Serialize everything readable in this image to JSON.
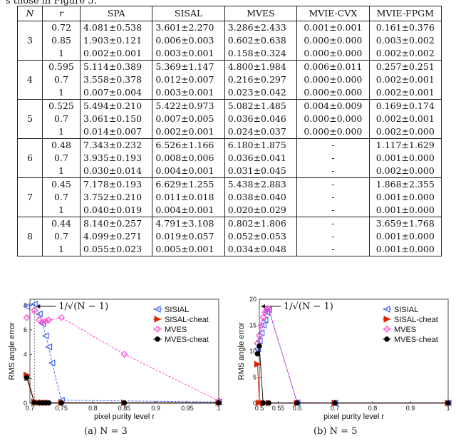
{
  "intro_text": "s those in Figure 5.",
  "table": {
    "headers": [
      "N",
      "r",
      "SPA",
      "SISAL",
      "MVES",
      "MVIE-CVX",
      "MVIE-FPGM"
    ],
    "groups": [
      {
        "N": "3",
        "rows": [
          [
            "0.72",
            "4.081±0.538",
            "3.601±2.270",
            "3.286±2.433",
            "0.001±0.001",
            "0.161±0.376"
          ],
          [
            "0.85",
            "1.903±0.121",
            "0.006±0.003",
            "0.602±0.638",
            "0.000±0.000",
            "0.003±0.002"
          ],
          [
            "1",
            "0.002±0.001",
            "0.003±0.001",
            "0.158±0.324",
            "0.000±0.000",
            "0.002±0.002"
          ]
        ]
      },
      {
        "N": "4",
        "rows": [
          [
            "0.595",
            "5.114±0.389",
            "5.369±1.147",
            "4.800±1.984",
            "0.006±0.011",
            "0.257±0.251"
          ],
          [
            "0.7",
            "3.558±0.378",
            "0.012±0.007",
            "0.216±0.297",
            "0.000±0.000",
            "0.002±0.001"
          ],
          [
            "1",
            "0.007±0.004",
            "0.003±0.001",
            "0.023±0.042",
            "0.000±0.000",
            "0.002±0.001"
          ]
        ]
      },
      {
        "N": "5",
        "rows": [
          [
            "0.525",
            "5.494±0.210",
            "5.422±0.973",
            "5.082±1.485",
            "0.004±0.009",
            "0.169±0.174"
          ],
          [
            "0.7",
            "3.061±0.150",
            "0.007±0.005",
            "0.036±0.046",
            "0.000±0.000",
            "0.002±0.001"
          ],
          [
            "1",
            "0.014±0.007",
            "0.002±0.001",
            "0.024±0.037",
            "0.000±0.000",
            "0.002±0.000"
          ]
        ]
      },
      {
        "N": "6",
        "rows": [
          [
            "0.48",
            "7.343±0.232",
            "6.526±1.166",
            "6.180±1.875",
            "-",
            "1.117±1.629"
          ],
          [
            "0.7",
            "3.935±0.193",
            "0.008±0.006",
            "0.036±0.041",
            "-",
            "0.001±0.000"
          ],
          [
            "1",
            "0.030±0.014",
            "0.004±0.001",
            "0.031±0.045",
            "-",
            "0.002±0.000"
          ]
        ]
      },
      {
        "N": "7",
        "rows": [
          [
            "0.45",
            "7.178±0.193",
            "6.629±1.255",
            "5.438±2.883",
            "-",
            "1.868±2.355"
          ],
          [
            "0.7",
            "3.752±0.210",
            "0.011±0.018",
            "0.038±0.040",
            "-",
            "0.001±0.000"
          ],
          [
            "1",
            "0.040±0.019",
            "0.004±0.001",
            "0.020±0.029",
            "-",
            "0.001±0.000"
          ]
        ]
      },
      {
        "N": "8",
        "rows": [
          [
            "0.44",
            "8.140±0.257",
            "4.791±3.108",
            "0.802±1.806",
            "-",
            "3.659±1.768"
          ],
          [
            "0.7",
            "4.099±0.271",
            "0.019±0.057",
            "0.052±0.053",
            "-",
            "0.001±0.000"
          ],
          [
            "1",
            "0.055±0.023",
            "0.005±0.001",
            "0.034±0.048",
            "-",
            "0.001±0.000"
          ]
        ]
      }
    ]
  },
  "chart_data": [
    {
      "type": "line",
      "caption": "(a) N = 3",
      "xlabel": "pixel purity level r",
      "ylabel": "RMS angle error",
      "xlim": [
        0.7,
        1.0
      ],
      "ylim": [
        0,
        8.5
      ],
      "xticks": [
        0.7,
        0.75,
        0.8,
        0.85,
        0.9,
        0.95,
        1
      ],
      "xtick_labels": [
        "0.7",
        "0.75",
        "0.8",
        "0.85",
        "0.9",
        "0.95",
        "1"
      ],
      "yticks": [
        0,
        2,
        4,
        6,
        8
      ],
      "ytick_labels": [
        "0",
        "2",
        "4",
        "6",
        "8"
      ],
      "vline_x": 0.7071,
      "annotation": "1/√(N − 1)",
      "legend_position": "top-right",
      "series": [
        {
          "name": "SISIAL",
          "color": "#3355ff",
          "marker": "triangle-left",
          "dashed": true,
          "x": [
            0.695,
            0.7071,
            0.715,
            0.72,
            0.725,
            0.73,
            0.735,
            0.75,
            1.0
          ],
          "y": [
            7.9,
            8.1,
            7.3,
            6.5,
            5.5,
            4.6,
            3.3,
            0.25,
            0.1
          ]
        },
        {
          "name": "SISAL-cheat",
          "color": "#dd2200",
          "marker": "triangle-right",
          "dashed": false,
          "x": [
            0.695,
            0.7071,
            0.715,
            0.72,
            0.725,
            0.73,
            0.75,
            0.85,
            1.0
          ],
          "y": [
            2.3,
            0.1,
            0.05,
            0.05,
            0.05,
            0.05,
            0.05,
            0.05,
            0.05
          ]
        },
        {
          "name": "MVES",
          "color": "#ff33cc",
          "marker": "diamond",
          "dashed": true,
          "x": [
            0.695,
            0.7071,
            0.715,
            0.72,
            0.725,
            0.73,
            0.75,
            0.85,
            1.0
          ],
          "y": [
            7.0,
            7.6,
            6.8,
            6.6,
            6.7,
            6.8,
            7.0,
            4.0,
            0.2
          ]
        },
        {
          "name": "MVES-cheat",
          "color": "#000000",
          "marker": "circle",
          "dashed": false,
          "x": [
            0.695,
            0.7071,
            0.715,
            0.72,
            0.725,
            0.73,
            0.75,
            0.85,
            1.0
          ],
          "y": [
            2.1,
            0.05,
            0.03,
            0.03,
            0.03,
            0.03,
            0.03,
            0.03,
            0.03
          ]
        }
      ]
    },
    {
      "type": "line",
      "caption": "(b) N = 5",
      "xlabel": "pixel purity level r",
      "ylabel": "RMS angle error",
      "xlim": [
        0.5,
        1.0
      ],
      "ylim": [
        0,
        20
      ],
      "xticks": [
        0.5,
        0.55,
        0.6,
        0.7,
        0.8,
        0.9,
        1
      ],
      "xtick_labels": [
        "0.5",
        "0.55",
        "0.6",
        "0.7",
        "0.8",
        "0.9",
        "1"
      ],
      "yticks": [
        0,
        5,
        10,
        15,
        20
      ],
      "ytick_labels": [
        "0",
        "5",
        "10",
        "15",
        "20"
      ],
      "vline_x": 0.5,
      "annotation": "1/√(N − 1)",
      "legend_position": "top-right",
      "series": [
        {
          "name": "SISIAL",
          "color": "#3355ff",
          "marker": "triangle-left",
          "dashed": true,
          "x": [
            0.495,
            0.5,
            0.505,
            0.51,
            0.515,
            0.52,
            0.525,
            0.6,
            0.7,
            1.0
          ],
          "y": [
            10.5,
            12.0,
            13.5,
            15.0,
            16.0,
            17.5,
            18.0,
            0.1,
            0.05,
            0.05
          ]
        },
        {
          "name": "SISAL-cheat",
          "color": "#dd2200",
          "marker": "triangle-right",
          "dashed": false,
          "x": [
            0.495,
            0.5,
            0.51,
            0.525,
            0.6,
            0.7,
            1.0
          ],
          "y": [
            7.5,
            0.1,
            0.05,
            0.05,
            0.05,
            0.05,
            0.05
          ]
        },
        {
          "name": "MVES",
          "color": "#ff33cc",
          "marker": "diamond",
          "dashed": true,
          "x": [
            0.495,
            0.5,
            0.505,
            0.51,
            0.515,
            0.52,
            0.525,
            0.6,
            0.7,
            1.0
          ],
          "y": [
            11.5,
            13.0,
            15.0,
            16.5,
            17.5,
            18.0,
            18.2,
            0.15,
            0.05,
            0.05
          ]
        },
        {
          "name": "MVES-cheat",
          "color": "#000000",
          "marker": "circle",
          "dashed": false,
          "x": [
            0.495,
            0.5,
            0.51,
            0.525,
            0.6,
            0.7,
            1.0
          ],
          "y": [
            9.5,
            11.0,
            0.05,
            0.05,
            0.05,
            0.05,
            0.05
          ]
        }
      ]
    }
  ]
}
